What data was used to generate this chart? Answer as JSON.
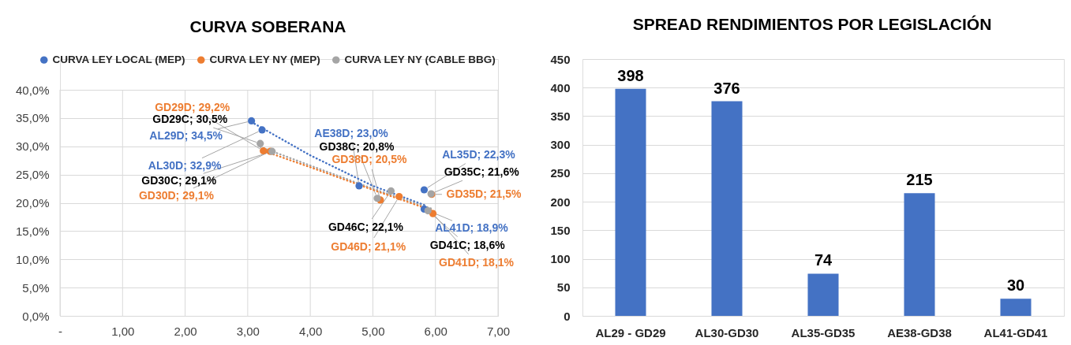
{
  "chart_data": [
    {
      "type": "scatter",
      "title": "CURVA SOBERANA",
      "xlim": [
        0,
        7
      ],
      "ylim": [
        0,
        40
      ],
      "xticks": [
        {
          "value": 0,
          "label": "-"
        },
        {
          "value": 1,
          "label": "1,00"
        },
        {
          "value": 2,
          "label": "2,00"
        },
        {
          "value": 3,
          "label": "3,00"
        },
        {
          "value": 4,
          "label": "4,00"
        },
        {
          "value": 5,
          "label": "5,00"
        },
        {
          "value": 6,
          "label": "6,00"
        },
        {
          "value": 7,
          "label": "7,00"
        }
      ],
      "yticks": [
        {
          "value": 0,
          "label": "0,0%"
        },
        {
          "value": 5,
          "label": "5,0%"
        },
        {
          "value": 10,
          "label": "10,0%"
        },
        {
          "value": 15,
          "label": "15,0%"
        },
        {
          "value": 20,
          "label": "20,0%"
        },
        {
          "value": 25,
          "label": "25,0%"
        },
        {
          "value": 30,
          "label": "30,0%"
        },
        {
          "value": 35,
          "label": "35,0%"
        },
        {
          "value": 40,
          "label": "40,0%"
        }
      ],
      "grid": true,
      "legend": "top",
      "marker": "circle",
      "series": [
        {
          "name": "CURVA LEY LOCAL (MEP)",
          "color": "#4472c4",
          "x": [
            3.06,
            3.23,
            4.78,
            5.82,
            5.82
          ],
          "values": [
            34.5,
            32.9,
            23.0,
            22.3,
            18.9
          ],
          "value_labels": [
            "AL29D; 34,5%",
            "AL30D; 32,9%",
            "AE38D; 23,0%",
            "AL35D; 22,3%",
            "AL41D; 18,9%"
          ]
        },
        {
          "name": "CURVA LEY NY (MEP)",
          "color": "#ed7d31",
          "x": [
            3.25,
            3.36,
            5.12,
            5.42,
            5.94,
            5.96
          ],
          "values": [
            29.2,
            29.1,
            20.5,
            21.1,
            21.5,
            18.1
          ],
          "value_labels": [
            "GD29D; 29,2%",
            "GD30D; 29,1%",
            "GD38D; 20,5%",
            "GD46D; 21,1%",
            "GD35D; 21,5%",
            "GD41D; 18,1%"
          ]
        },
        {
          "name": "CURVA LEY NY (CABLE BBG)",
          "color": "#a5a5a5",
          "x": [
            3.2,
            3.39,
            5.07,
            5.29,
            5.93,
            5.88
          ],
          "values": [
            30.5,
            29.1,
            20.8,
            22.1,
            21.6,
            18.6
          ],
          "value_labels": [
            "GD29C; 30,5%",
            "GD30C; 29,1%",
            "GD38C; 20,8%",
            "GD46C; 22,1%",
            "GD35C; 21,6%",
            "GD41C; 18,6%"
          ]
        },
        {
          "type": "line",
          "color": "#4472c4",
          "line_style": "dotted",
          "marker": "none",
          "x": [
            3.06,
            4.0,
            5.0,
            5.85
          ],
          "values": [
            34.3,
            28.4,
            23.0,
            19.5
          ]
        },
        {
          "type": "line",
          "color": "#a5a5a5",
          "line_style": "dotted",
          "marker": "none",
          "x": [
            3.2,
            4.0,
            5.0,
            5.93
          ],
          "values": [
            29.9,
            26.6,
            22.5,
            19.0
          ]
        },
        {
          "type": "line",
          "color": "#ed7d31",
          "line_style": "dotted",
          "marker": "none",
          "x": [
            3.25,
            4.0,
            5.0,
            5.96
          ],
          "values": [
            29.2,
            26.3,
            22.3,
            18.6
          ]
        }
      ]
    },
    {
      "type": "bar",
      "title": "SPREAD RENDIMIENTOS POR LEGISLACIÓN",
      "categories": [
        "AL29 - GD29",
        "AL30-GD30",
        "AL35-GD35",
        "AE38-GD38",
        "AL41-GD41"
      ],
      "values": [
        398,
        376,
        74,
        215,
        30
      ],
      "color": "#4472c4",
      "ylim": [
        0,
        450
      ],
      "yticks": [
        0,
        50,
        100,
        150,
        200,
        250,
        300,
        350,
        400,
        450
      ],
      "grid": "y",
      "data_labels": true
    }
  ]
}
